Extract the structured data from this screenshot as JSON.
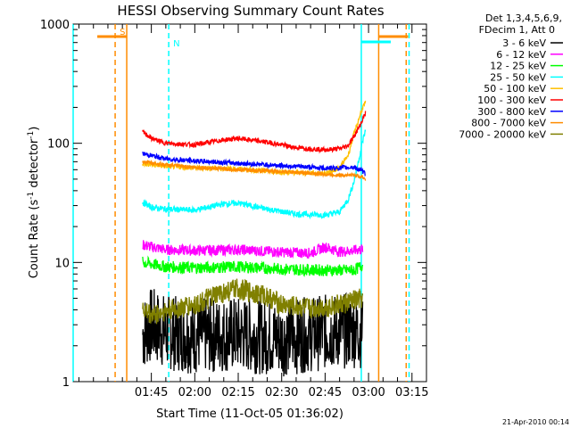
{
  "chart_data": {
    "type": "line",
    "title": "HESSI Observing Summary Count Rates",
    "xlabel": "Start Time (11-Oct-05 01:36:02)",
    "ylabel": "Count Rate (s",
    "ylabel_sup1": "-1",
    "ylabel_mid": " detector",
    "ylabel_sup2": "-1",
    "ylabel_end": ")",
    "y_scale": "log",
    "ylim": [
      1,
      1000
    ],
    "xlim_minutes": [
      -12,
      110
    ],
    "x_tick_labels": [
      "01:45",
      "02:00",
      "02:15",
      "02:30",
      "02:45",
      "03:00",
      "03:15"
    ],
    "x_tick_minutes": [
      15,
      30,
      45,
      60,
      75,
      90,
      105
    ],
    "y_tick_labels": [
      "1",
      "10",
      "100",
      "1000"
    ],
    "y_tick_values": [
      1,
      10,
      100,
      1000
    ],
    "legend_header": [
      "Det 1,3,4,5,6,9,",
      "FDecim 1, Att 0"
    ],
    "legend_position": "right",
    "footer_date": "21-Apr-2010 00:14",
    "markers": [
      {
        "label": "S",
        "color": "#ff8c00",
        "solid_minutes": [
          6.5,
          93.5
        ],
        "dashed_minutes": [
          2.5,
          103
        ]
      },
      {
        "label": "N",
        "color": "#00ffff",
        "solid_minutes": [
          -12,
          87.5
        ],
        "dashed_minutes": [
          21,
          104
        ]
      }
    ],
    "series": [
      {
        "name": "3 - 6 keV",
        "color": "#000000",
        "x": [
          12,
          15,
          20,
          30,
          45,
          60,
          75,
          85,
          88
        ],
        "y": [
          2.5,
          3,
          2.6,
          2.4,
          2.5,
          2.3,
          2.6,
          2.7,
          2.7
        ]
      },
      {
        "name": "6 - 12 keV",
        "color": "#ff00ff",
        "x": [
          12,
          20,
          30,
          45,
          60,
          70,
          75,
          80,
          85,
          88
        ],
        "y": [
          14,
          12.8,
          12.6,
          12.8,
          12.2,
          12,
          13.5,
          12.3,
          12.6,
          13
        ]
      },
      {
        "name": "12 - 25 keV",
        "color": "#00ff00",
        "x": [
          12,
          20,
          30,
          45,
          60,
          75,
          85,
          88
        ],
        "y": [
          10,
          9.2,
          9,
          9.2,
          8.8,
          8.6,
          8.6,
          9.5
        ]
      },
      {
        "name": "25 - 50 keV",
        "color": "#00ffff",
        "x": [
          12,
          15,
          20,
          30,
          40,
          45,
          55,
          65,
          75,
          80,
          83,
          85,
          87,
          88,
          89
        ],
        "y": [
          32,
          29,
          28,
          27.5,
          31,
          31.5,
          28,
          25.5,
          25,
          26.5,
          34,
          48,
          80,
          105,
          130
        ]
      },
      {
        "name": "50 - 100 keV",
        "color": "#ffc000",
        "x": [
          12,
          20,
          30,
          45,
          60,
          75,
          80,
          83,
          85,
          87,
          88,
          89
        ],
        "y": [
          67,
          64,
          62,
          61,
          57,
          56,
          62,
          80,
          120,
          170,
          200,
          220
        ]
      },
      {
        "name": "100 - 300 keV",
        "color": "#ff0000",
        "x": [
          12,
          15,
          20,
          30,
          40,
          45,
          55,
          65,
          75,
          80,
          83,
          85,
          87,
          88,
          89
        ],
        "y": [
          125,
          110,
          100,
          97,
          107,
          110,
          102,
          92,
          88,
          90,
          96,
          115,
          140,
          160,
          180
        ]
      },
      {
        "name": "300 - 800 keV",
        "color": "#0000ff",
        "x": [
          12,
          20,
          30,
          45,
          60,
          75,
          80,
          85,
          88,
          89
        ],
        "y": [
          82,
          74,
          71,
          68,
          65,
          62,
          62,
          63,
          58,
          55
        ]
      },
      {
        "name": "800 - 7000 keV",
        "color": "#ff8c00",
        "x": [
          12,
          20,
          30,
          45,
          60,
          75,
          80,
          85,
          88,
          89
        ],
        "y": [
          70,
          66,
          63,
          60,
          58,
          55,
          54,
          54,
          52,
          50
        ]
      },
      {
        "name": "7000 - 20000 keV",
        "color": "#808000",
        "x": [
          12,
          15,
          20,
          30,
          40,
          45,
          55,
          60,
          70,
          80,
          88
        ],
        "y": [
          4,
          3.6,
          3.9,
          4.4,
          5.6,
          6,
          5.2,
          4.4,
          4.1,
          4.4,
          5
        ]
      }
    ]
  }
}
